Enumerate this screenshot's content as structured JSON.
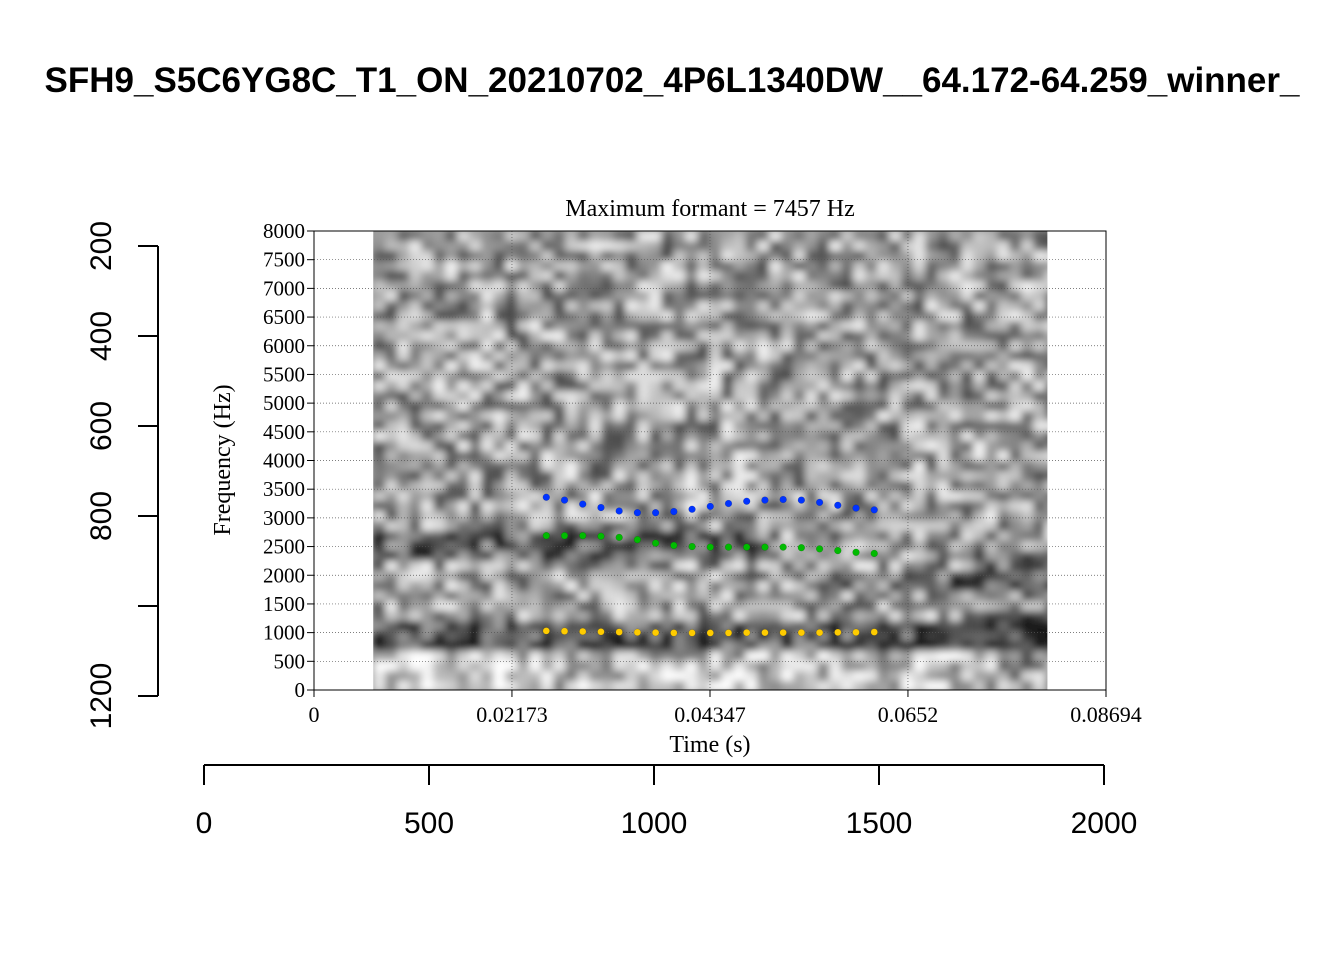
{
  "title": "SFH9_S5C6YG8C_T1_ON_20210702_4P6L1340DW__64.172-64.259_winner_",
  "chart_data": {
    "type": "scatter",
    "subtitle": "Maximum formant  =  7457 Hz",
    "xlabel": "Time (s)",
    "ylabel": "Frequency (Hz)",
    "xlim": [
      0,
      0.08694
    ],
    "ylim": [
      0,
      8000
    ],
    "x_ticks": [
      "0",
      "0.02173",
      "0.04347",
      "0.0652",
      "0.08694"
    ],
    "y_ticks": [
      "0",
      "500",
      "1000",
      "1500",
      "2000",
      "2500",
      "3000",
      "3500",
      "4000",
      "4500",
      "5000",
      "5500",
      "6000",
      "6500",
      "7000",
      "7500",
      "8000"
    ],
    "grid": true,
    "spectrogram_time_range": [
      0.0065,
      0.0805
    ],
    "time": [
      0.0255,
      0.0275,
      0.0295,
      0.0315,
      0.0335,
      0.0355,
      0.0375,
      0.0395,
      0.0415,
      0.0435,
      0.0455,
      0.0475,
      0.0495,
      0.0515,
      0.0535,
      0.0555,
      0.0575,
      0.0595,
      0.0615
    ],
    "series": [
      {
        "color": "#ffcc00",
        "values": [
          1030,
          1025,
          1020,
          1015,
          1010,
          1005,
          1000,
          995,
          995,
          995,
          995,
          1000,
          1000,
          1000,
          1000,
          1000,
          1005,
          1005,
          1010
        ]
      },
      {
        "color": "#00bb00",
        "values": [
          2690,
          2690,
          2690,
          2680,
          2660,
          2620,
          2560,
          2520,
          2500,
          2490,
          2490,
          2490,
          2490,
          2490,
          2480,
          2460,
          2430,
          2400,
          2380
        ]
      },
      {
        "color": "#0033ff",
        "values": [
          3360,
          3310,
          3240,
          3180,
          3120,
          3090,
          3090,
          3110,
          3150,
          3200,
          3250,
          3290,
          3310,
          3320,
          3310,
          3270,
          3220,
          3170,
          3140
        ]
      }
    ],
    "aux_left_axis": {
      "ticks": [
        200,
        400,
        600,
        800,
        1000,
        1200
      ],
      "labels": [
        "200",
        "400",
        "600",
        "800",
        "",
        "1200"
      ],
      "range": [
        200,
        1200
      ],
      "reversed": true
    },
    "aux_bottom_axis": {
      "ticks": [
        0,
        500,
        1000,
        1500,
        2000
      ],
      "labels": [
        "0",
        "500",
        "1000",
        "1500",
        "2000"
      ],
      "range": [
        0,
        2000
      ]
    }
  }
}
